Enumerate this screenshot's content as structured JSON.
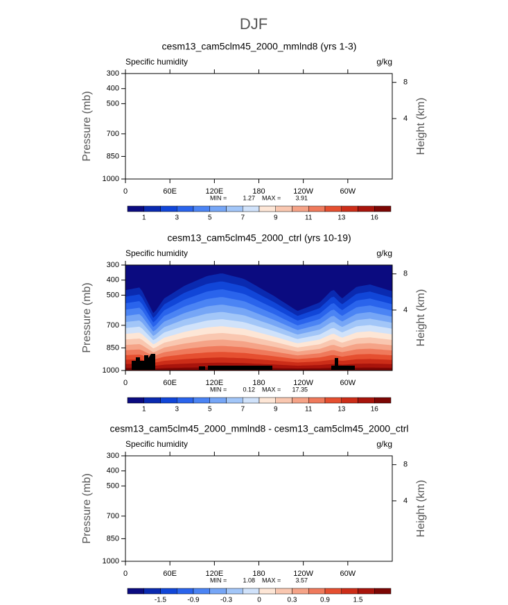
{
  "title": "DJF",
  "chart_data": [
    {
      "type": "contour",
      "title": "cesm13_cam5clm45_2000_mmlnd8 (yrs 1-3)",
      "field_label": "Specific humidity",
      "units": "g/kg",
      "ylabel": "Pressure (mb)",
      "y2label": "Height (km)",
      "filled": false,
      "ylim": [
        1000,
        300
      ],
      "yticks": [
        300,
        400,
        500,
        700,
        850,
        1000
      ],
      "y2ticks": [
        8,
        4
      ],
      "xlim": [
        0,
        360
      ],
      "xticks": [
        0,
        {
          "value": 60,
          "label": "60E"
        },
        {
          "value": 120,
          "label": "120E"
        },
        180,
        {
          "value": 240,
          "label": "120W"
        },
        {
          "value": 300,
          "label": "60W"
        }
      ],
      "min_label": "MIN =",
      "min": 1.27,
      "max_label": "MAX =",
      "max": 3.91,
      "colorbar": {
        "colors": [
          "#0b0b80",
          "#0a2ab0",
          "#1146d8",
          "#2a64ec",
          "#4b84f4",
          "#76a6f6",
          "#a2c6f8",
          "#d0e2fa",
          "#fde6d6",
          "#f9c7b0",
          "#f5a387",
          "#ef7a5c",
          "#e54f30",
          "#cc2d18",
          "#a8140c",
          "#7c0604"
        ],
        "levels": [
          1,
          null,
          3,
          null,
          5,
          null,
          7,
          null,
          9,
          null,
          11,
          null,
          13,
          null,
          16
        ]
      }
    },
    {
      "type": "contour",
      "title": "cesm13_cam5clm45_2000_ctrl (yrs 10-19)",
      "field_label": "Specific humidity",
      "units": "g/kg",
      "ylabel": "Pressure (mb)",
      "y2label": "Height (km)",
      "filled": true,
      "ylim": [
        1000,
        300
      ],
      "yticks": [
        300,
        400,
        500,
        700,
        850,
        1000
      ],
      "y2ticks": [
        8,
        4
      ],
      "xlim": [
        0,
        360
      ],
      "xticks": [
        0,
        {
          "value": 60,
          "label": "60E"
        },
        {
          "value": 120,
          "label": "120E"
        },
        180,
        {
          "value": 240,
          "label": "120W"
        },
        {
          "value": 300,
          "label": "60W"
        }
      ],
      "min_label": "MIN =",
      "min": 0.12,
      "max_label": "MAX =",
      "max": 17.35,
      "colorbar": {
        "colors": [
          "#0b0b80",
          "#0a2ab0",
          "#1146d8",
          "#2a64ec",
          "#4b84f4",
          "#76a6f6",
          "#a2c6f8",
          "#d0e2fa",
          "#fde6d6",
          "#f9c7b0",
          "#f5a387",
          "#ef7a5c",
          "#e54f30",
          "#cc2d18",
          "#a8140c",
          "#7c0604"
        ],
        "levels": [
          1,
          null,
          3,
          null,
          5,
          null,
          7,
          null,
          9,
          null,
          11,
          null,
          13,
          null,
          16
        ]
      }
    },
    {
      "type": "contour",
      "title": "cesm13_cam5clm45_2000_mmlnd8 - cesm13_cam5clm45_2000_ctrl",
      "field_label": "Specific humidity",
      "units": "g/kg",
      "ylabel": "Pressure (mb)",
      "y2label": "Height (km)",
      "filled": false,
      "ylim": [
        1000,
        300
      ],
      "yticks": [
        300,
        400,
        500,
        700,
        850,
        1000
      ],
      "y2ticks": [
        8,
        4
      ],
      "xlim": [
        0,
        360
      ],
      "xticks": [
        0,
        {
          "value": 60,
          "label": "60E"
        },
        {
          "value": 120,
          "label": "120E"
        },
        180,
        {
          "value": 240,
          "label": "120W"
        },
        {
          "value": 300,
          "label": "60W"
        }
      ],
      "min_label": "MIN =",
      "min": 1.08,
      "max_label": "MAX =",
      "max": 3.57,
      "colorbar": {
        "colors": [
          "#0b0b80",
          "#0a2ab0",
          "#1146d8",
          "#2a64ec",
          "#4b84f4",
          "#76a6f6",
          "#a2c6f8",
          "#d0e2fa",
          "#fde6d6",
          "#f9c7b0",
          "#f5a387",
          "#ef7a5c",
          "#e54f30",
          "#cc2d18",
          "#a8140c",
          "#7c0604"
        ],
        "levels": [
          null,
          -1.5,
          null,
          -0.9,
          null,
          -0.3,
          null,
          0,
          null,
          0.3,
          null,
          0.9,
          null,
          1.5,
          null
        ]
      }
    }
  ]
}
